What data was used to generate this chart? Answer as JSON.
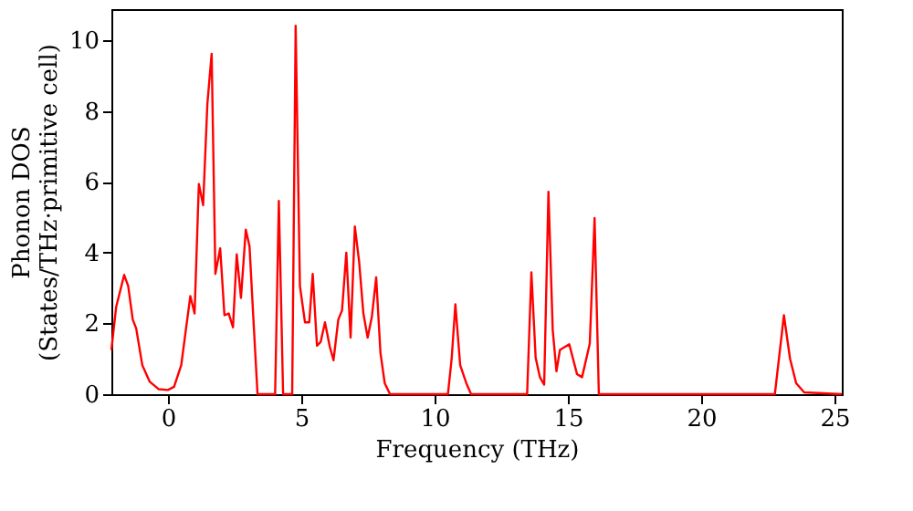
{
  "chart_data": {
    "type": "line",
    "xlabel": "Frequency (THz)",
    "ylabel": "Phonon DOS\n(States/THz·primitive cell)",
    "xlim": [
      -2.12,
      25.27
    ],
    "xticks": [
      0,
      5,
      10,
      15,
      20,
      25
    ],
    "ylim": [
      0,
      10.88
    ],
    "yticks": [
      0,
      2,
      4,
      6,
      8,
      10
    ],
    "grid": false,
    "legend": false,
    "marker": "none",
    "line_style": "solid",
    "series": [
      {
        "color": "#ff0000",
        "x": [
          -2.12,
          -1.94,
          -1.64,
          -1.49,
          -1.32,
          -1.19,
          -0.96,
          -0.68,
          -0.34,
          0,
          0.23,
          0.5,
          0.68,
          0.84,
          1.0,
          1.16,
          1.32,
          1.48,
          1.64,
          1.78,
          1.96,
          2.12,
          2.28,
          2.44,
          2.58,
          2.74,
          2.92,
          3.06,
          3.2,
          3.36,
          4.02,
          4.16,
          4.32,
          4.66,
          4.79,
          4.95,
          5.14,
          5.3,
          5.43,
          5.59,
          5.73,
          5.89,
          6.07,
          6.21,
          6.39,
          6.53,
          6.69,
          6.85,
          7.01,
          7.17,
          7.33,
          7.49,
          7.65,
          7.81,
          7.97,
          8.13,
          8.33,
          10.5,
          10.64,
          10.78,
          10.96,
          11.19,
          11.37,
          13.47,
          13.63,
          13.79,
          13.95,
          14.11,
          14.27,
          14.43,
          14.57,
          14.7,
          15.05,
          15.34,
          15.53,
          15.82,
          16.0,
          16.16,
          22.76,
          23.1,
          23.33,
          23.56,
          23.86,
          25.27
        ],
        "values": [
          1.25,
          2.47,
          3.37,
          3.06,
          2.11,
          1.86,
          0.82,
          0.35,
          0.14,
          0.12,
          0.21,
          0.82,
          1.86,
          2.77,
          2.28,
          5.94,
          5.34,
          8.21,
          9.62,
          3.4,
          4.12,
          2.23,
          2.28,
          1.89,
          3.95,
          2.72,
          4.65,
          4.18,
          2.2,
          0,
          0,
          5.46,
          0,
          0,
          10.41,
          3.06,
          2.03,
          2.03,
          3.4,
          1.37,
          1.48,
          2.03,
          1.34,
          0.96,
          2.11,
          2.37,
          4.0,
          1.6,
          4.74,
          3.75,
          2.28,
          1.6,
          2.2,
          3.3,
          1.17,
          0.31,
          0,
          0,
          1.0,
          2.54,
          0.82,
          0.31,
          0,
          0,
          3.44,
          1.03,
          0.48,
          0.27,
          5.72,
          1.82,
          0.65,
          1.25,
          1.41,
          0.57,
          0.48,
          1.43,
          4.98,
          0,
          0,
          2.23,
          1.0,
          0.31,
          0.05,
          0
        ]
      }
    ]
  }
}
